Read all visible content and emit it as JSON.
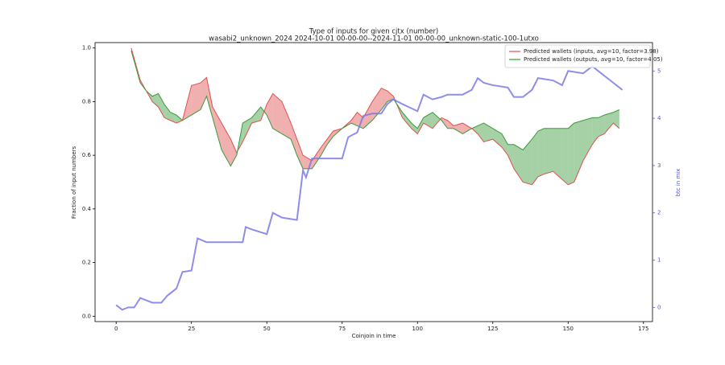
{
  "chart_data": {
    "type": "line",
    "title": "Type of inputs for given cjtx (number)",
    "subtitle": "wasabi2_unknown_2024 2024-10-01 00-00-00--2024-11-01 00-00-00_unknown-static-100-1utxo",
    "xlabel": "Coinjoin in time",
    "ylabel": "Fraction of input numbers",
    "y2label": "btc in mix",
    "xlim": [
      -7,
      178
    ],
    "ylim": [
      -0.02,
      1.02
    ],
    "y2lim": [
      -0.3,
      5.6
    ],
    "xticks": [
      0,
      25,
      50,
      75,
      100,
      125,
      150,
      175
    ],
    "yticks": [
      {
        "value": 0,
        "label": "0.0"
      },
      0.2,
      0.4,
      0.6,
      0.8,
      {
        "value": 1,
        "label": "1.0"
      }
    ],
    "y2ticks": [
      0,
      1,
      2,
      3,
      4,
      5
    ],
    "legend": "upper right",
    "fill_between": true,
    "x": [
      5,
      8,
      10,
      12,
      14,
      16,
      18,
      20,
      22,
      25,
      28,
      30,
      32,
      35,
      38,
      40,
      42,
      45,
      48,
      50,
      52,
      55,
      58,
      60,
      62,
      65,
      68,
      70,
      72,
      75,
      78,
      80,
      82,
      85,
      88,
      90,
      92,
      95,
      98,
      100,
      102,
      105,
      108,
      110,
      112,
      115,
      118,
      120,
      122,
      125,
      128,
      130,
      132,
      135,
      138,
      140,
      142,
      145,
      148,
      150,
      152,
      155,
      158,
      160,
      162,
      165,
      167
    ],
    "series": [
      {
        "name": "Predicted wallets (inputs, avg=10, factor=3.98)",
        "color": "#e05050",
        "values": [
          1.0,
          0.88,
          0.84,
          0.8,
          0.78,
          0.74,
          0.73,
          0.72,
          0.73,
          0.86,
          0.87,
          0.89,
          0.78,
          0.72,
          0.66,
          0.61,
          0.65,
          0.72,
          0.73,
          0.79,
          0.83,
          0.8,
          0.72,
          0.66,
          0.6,
          0.58,
          0.63,
          0.66,
          0.69,
          0.7,
          0.73,
          0.76,
          0.74,
          0.8,
          0.85,
          0.84,
          0.82,
          0.74,
          0.7,
          0.68,
          0.72,
          0.7,
          0.74,
          0.73,
          0.71,
          0.72,
          0.7,
          0.68,
          0.65,
          0.66,
          0.63,
          0.6,
          0.55,
          0.5,
          0.49,
          0.52,
          0.53,
          0.54,
          0.51,
          0.49,
          0.5,
          0.58,
          0.64,
          0.67,
          0.68,
          0.72,
          0.7
        ]
      },
      {
        "name": "Predicted wallets (outputs, avg=10, factor=4.05)",
        "color": "#3a9a3a",
        "values": [
          0.99,
          0.87,
          0.84,
          0.82,
          0.83,
          0.79,
          0.76,
          0.75,
          0.73,
          0.75,
          0.77,
          0.82,
          0.74,
          0.62,
          0.56,
          0.6,
          0.72,
          0.74,
          0.78,
          0.75,
          0.7,
          0.68,
          0.66,
          0.6,
          0.55,
          0.55,
          0.6,
          0.64,
          0.67,
          0.7,
          0.72,
          0.71,
          0.7,
          0.73,
          0.77,
          0.8,
          0.81,
          0.76,
          0.72,
          0.7,
          0.74,
          0.76,
          0.73,
          0.7,
          0.7,
          0.68,
          0.7,
          0.71,
          0.72,
          0.7,
          0.68,
          0.64,
          0.64,
          0.62,
          0.66,
          0.69,
          0.7,
          0.7,
          0.7,
          0.7,
          0.72,
          0.73,
          0.74,
          0.74,
          0.75,
          0.76,
          0.77
        ]
      },
      {
        "color": "#7a7ae6",
        "axis": "y2",
        "x": [
          0,
          2,
          4,
          6,
          8,
          10,
          12,
          15,
          17,
          20,
          22,
          25,
          27,
          30,
          35,
          42,
          43,
          45,
          50,
          52,
          55,
          60,
          62,
          63,
          65,
          70,
          75,
          77,
          80,
          82,
          85,
          88,
          90,
          92,
          95,
          100,
          102,
          105,
          108,
          110,
          115,
          118,
          120,
          122,
          125,
          130,
          132,
          135,
          138,
          140,
          145,
          148,
          150,
          155,
          158,
          160,
          163,
          165,
          168
        ],
        "values": [
          0.05,
          -0.05,
          0,
          0,
          0.2,
          0.15,
          0.1,
          0.1,
          0.25,
          0.4,
          0.75,
          0.78,
          1.46,
          1.38,
          1.38,
          1.38,
          1.7,
          1.65,
          1.55,
          2.0,
          1.9,
          1.85,
          2.9,
          2.75,
          3.15,
          3.15,
          3.15,
          3.6,
          3.7,
          4.05,
          4.1,
          4.1,
          4.3,
          4.4,
          4.3,
          4.15,
          4.5,
          4.4,
          4.45,
          4.5,
          4.5,
          4.6,
          4.85,
          4.75,
          4.7,
          4.65,
          4.45,
          4.45,
          4.6,
          4.85,
          4.8,
          4.7,
          5.0,
          4.95,
          5.1,
          5.0,
          4.85,
          4.75,
          4.6
        ]
      }
    ]
  }
}
